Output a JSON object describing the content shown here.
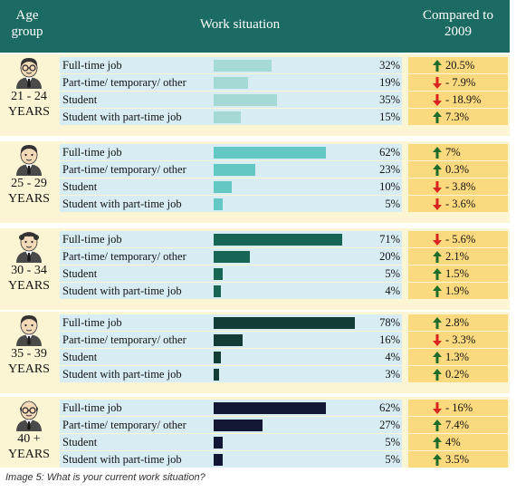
{
  "header": {
    "age_group": "Age\ngroup",
    "work_situation": "Work situation",
    "compared": "Compared to\n2009"
  },
  "caption": "Image 5: What is your current work situation?",
  "colors": {
    "header": "#1b6b63",
    "background": "#fbf5d3",
    "row_band": "#d8ecf3",
    "compare_cell": "#fbd97f",
    "arrow_up": "#1f6b2a",
    "arrow_down": "#d9241f"
  },
  "chart_data": {
    "type": "bar",
    "orientation": "horizontal",
    "unit": "%",
    "categories": [
      "Full-time job",
      "Part-time/ temporary/ other",
      "Student",
      "Student with part-time job"
    ],
    "xlim": [
      0,
      100
    ],
    "groups": [
      {
        "age_line1": "21 - 24",
        "age_line2": "YEARS",
        "icon": "person-glasses-tie-icon",
        "bar_color": "#a4d9d6",
        "values": [
          32,
          19,
          35,
          15
        ],
        "value_labels": [
          "32%",
          "19%",
          "35%",
          "15%"
        ],
        "changes": [
          {
            "direction": "up",
            "label": "20.5%"
          },
          {
            "direction": "down",
            "label": "- 7.9%"
          },
          {
            "direction": "down",
            "label": "- 18.9%"
          },
          {
            "direction": "up",
            "label": "7.3%"
          }
        ]
      },
      {
        "age_line1": "25 - 29",
        "age_line2": "YEARS",
        "icon": "person-tie-icon",
        "bar_color": "#63c7c4",
        "values": [
          62,
          23,
          10,
          5
        ],
        "value_labels": [
          "62%",
          "23%",
          "10%",
          "5%"
        ],
        "changes": [
          {
            "direction": "up",
            "label": "7%"
          },
          {
            "direction": "up",
            "label": "0.3%"
          },
          {
            "direction": "down",
            "label": "- 3.8%"
          },
          {
            "direction": "down",
            "label": "- 3.6%"
          }
        ]
      },
      {
        "age_line1": "30 - 34",
        "age_line2": "YEARS",
        "icon": "person-curly-hair-icon",
        "bar_color": "#176655",
        "values": [
          71,
          20,
          5,
          4
        ],
        "value_labels": [
          "71%",
          "20%",
          "5%",
          "4%"
        ],
        "changes": [
          {
            "direction": "down",
            "label": "- 5.6%"
          },
          {
            "direction": "up",
            "label": "2.1%"
          },
          {
            "direction": "up",
            "label": "1.5%"
          },
          {
            "direction": "up",
            "label": "1.9%"
          }
        ]
      },
      {
        "age_line1": "35 - 39",
        "age_line2": "YEARS",
        "icon": "person-suit-icon",
        "bar_color": "#123c35",
        "values": [
          78,
          16,
          4,
          3
        ],
        "value_labels": [
          "78%",
          "16%",
          "4%",
          "3%"
        ],
        "changes": [
          {
            "direction": "up",
            "label": "2.8%"
          },
          {
            "direction": "down",
            "label": "- 3.3%"
          },
          {
            "direction": "up",
            "label": "1.3%"
          },
          {
            "direction": "up",
            "label": "0.2%"
          }
        ]
      },
      {
        "age_line1": "40 +",
        "age_line2": "YEARS",
        "icon": "person-bald-glasses-icon",
        "bar_color": "#121733",
        "values": [
          62,
          27,
          5,
          5
        ],
        "value_labels": [
          "62%",
          "27%",
          "5%",
          "5%"
        ],
        "changes": [
          {
            "direction": "down",
            "label": "- 16%"
          },
          {
            "direction": "up",
            "label": "7.4%"
          },
          {
            "direction": "up",
            "label": "4%"
          },
          {
            "direction": "up",
            "label": "3.5%"
          }
        ]
      }
    ]
  }
}
